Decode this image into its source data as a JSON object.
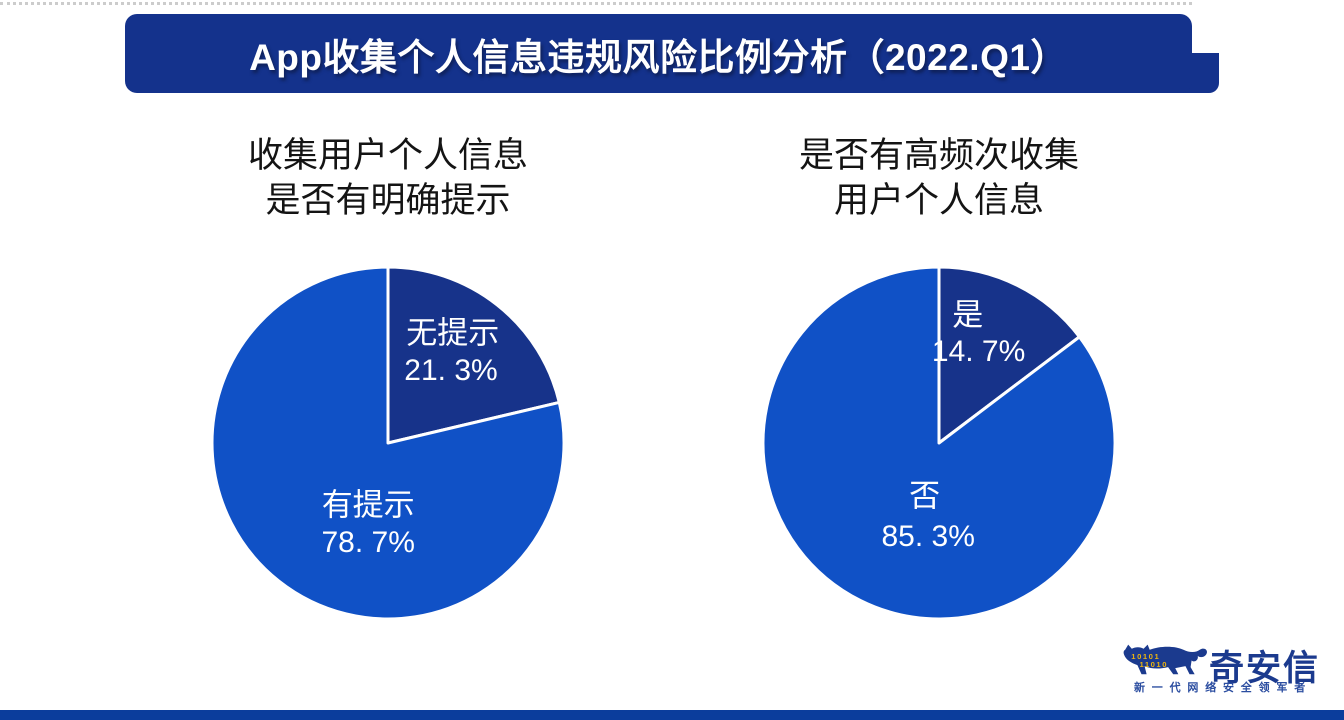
{
  "header": {
    "title": "App收集个人信息违规风险比例分析（2022.Q1）"
  },
  "charts": [
    {
      "title_line1": "收集用户个人信息",
      "title_line2": "是否有明确提示",
      "slices": [
        {
          "label": "无提示",
          "value_text": "21. 3%",
          "value": 21.3
        },
        {
          "label": "有提示",
          "value_text": "78. 7%",
          "value": 78.7
        }
      ]
    },
    {
      "title_line1": "是否有高频次收集",
      "title_line2": "用户个人信息",
      "slices": [
        {
          "label": "是",
          "value_text": "14. 7%",
          "value": 14.7
        },
        {
          "label": "否",
          "value_text": "85. 3%",
          "value": 85.3
        }
      ]
    }
  ],
  "chart_data": [
    {
      "type": "pie",
      "title": "收集用户个人信息是否有明确提示",
      "labels": [
        "无提示",
        "有提示"
      ],
      "values": [
        21.3,
        78.7
      ],
      "unit": "%",
      "colors": [
        "#17338a",
        "#1051c6"
      ],
      "start_angle": "12-oclock",
      "direction": "clockwise",
      "slice_border_color": "#ffffff",
      "label_position": "inside"
    },
    {
      "type": "pie",
      "title": "是否有高频次收集用户个人信息",
      "labels": [
        "是",
        "否"
      ],
      "values": [
        14.7,
        85.3
      ],
      "unit": "%",
      "colors": [
        "#17338a",
        "#1051c6"
      ],
      "start_angle": "12-oclock",
      "direction": "clockwise",
      "slice_border_color": "#ffffff",
      "label_position": "inside"
    }
  ],
  "branding": {
    "logo_text": "奇安信",
    "tagline": "新一代网络安全领军者",
    "binary_row1": "10101",
    "binary_row2": "11010",
    "logo_color": "#1b3a8e",
    "binary_color": "#edb50e"
  },
  "colors": {
    "banner_bg": "#14328c",
    "slice_dark": "#17338a",
    "slice_bright": "#1051c6",
    "bottom_bar": "#0b3d9c",
    "label_text": "#ffffff",
    "chart_title_text": "#141414"
  }
}
